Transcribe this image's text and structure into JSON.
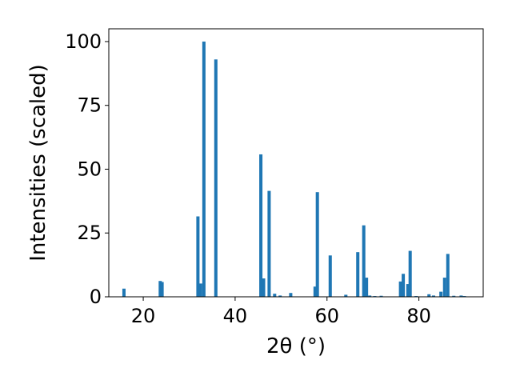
{
  "chart_data": {
    "type": "bar",
    "title": "",
    "xlabel": "2θ (°)",
    "ylabel": "Intensities (scaled)",
    "xlim": [
      12.5,
      94.0
    ],
    "ylim": [
      0,
      105
    ],
    "xticks": [
      20,
      40,
      60,
      80
    ],
    "yticks": [
      0,
      25,
      50,
      75,
      100
    ],
    "grid": false,
    "bar_color": "#1f77b4",
    "bar_width": 0.7,
    "x": [
      15.8,
      23.7,
      24.1,
      31.9,
      32.5,
      33.2,
      35.8,
      45.6,
      46.2,
      47.4,
      48.6,
      49.8,
      52.1,
      57.4,
      57.9,
      60.7,
      64.1,
      66.7,
      68.0,
      68.6,
      69.3,
      70.4,
      71.8,
      76.0,
      76.6,
      77.6,
      78.1,
      79.4,
      82.2,
      83.2,
      84.8,
      85.6,
      86.3,
      87.6,
      89.2,
      89.9
    ],
    "values": [
      3.2,
      6.2,
      5.8,
      31.5,
      5.2,
      100.0,
      93.0,
      55.8,
      7.2,
      41.5,
      1.2,
      0.5,
      1.5,
      4.0,
      41.0,
      16.2,
      0.8,
      17.5,
      28.0,
      7.5,
      0.5,
      0.3,
      0.4,
      6.0,
      9.0,
      5.0,
      18.0,
      0.3,
      1.0,
      0.5,
      2.0,
      7.5,
      16.8,
      0.4,
      0.5,
      0.3
    ]
  }
}
